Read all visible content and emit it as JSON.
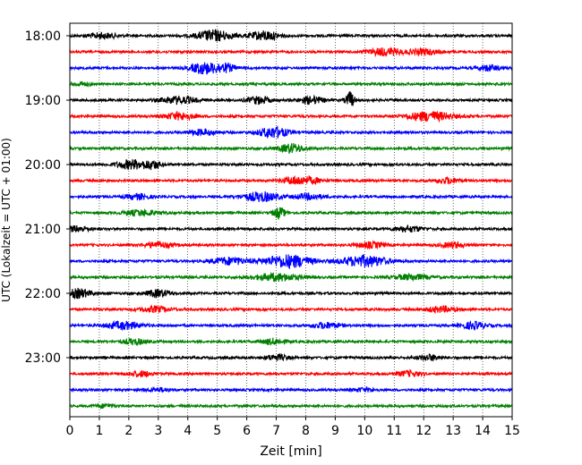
{
  "chart_data": {
    "type": "line",
    "subtype": "helicorder",
    "title": "",
    "xlabel": "Zeit  [min]",
    "ylabel": "UTC (Lokalzeit = UTC + 01:00)",
    "xlim": [
      0,
      15
    ],
    "x_ticks": [
      "0",
      "1",
      "2",
      "3",
      "4",
      "5",
      "6",
      "7",
      "8",
      "9",
      "10",
      "11",
      "12",
      "13",
      "14",
      "15"
    ],
    "y_tick_labels": [
      "18:00",
      "19:00",
      "20:00",
      "21:00",
      "22:00",
      "23:00"
    ],
    "trace_interval_min": 15,
    "grid": "vertical dotted at every minute",
    "legend": "none",
    "trace_color_cycle": [
      "#000000",
      "#ff0000",
      "#0000ff",
      "#008000"
    ],
    "series": [
      {
        "start": "18:00",
        "color": "#000000",
        "bursts": [
          [
            4.9,
            6,
            0.6
          ],
          [
            6.6,
            5,
            0.5
          ],
          [
            1.1,
            3,
            0.5
          ]
        ]
      },
      {
        "start": "18:15",
        "color": "#ff0000",
        "bursts": [
          [
            10.7,
            4,
            0.6
          ],
          [
            12.0,
            3,
            0.5
          ]
        ]
      },
      {
        "start": "18:30",
        "color": "#0000ff",
        "bursts": [
          [
            4.5,
            6,
            0.4
          ],
          [
            5.2,
            5,
            0.4
          ],
          [
            14.2,
            3,
            0.4
          ]
        ]
      },
      {
        "start": "18:45",
        "color": "#008000",
        "bursts": [
          [
            0.4,
            2,
            0.3
          ]
        ]
      },
      {
        "start": "19:00",
        "color": "#000000",
        "bursts": [
          [
            9.5,
            9,
            0.15
          ],
          [
            3.7,
            4,
            0.6
          ],
          [
            6.4,
            4,
            0.4
          ],
          [
            8.2,
            4,
            0.4
          ]
        ]
      },
      {
        "start": "19:15",
        "color": "#ff0000",
        "bursts": [
          [
            12.2,
            5,
            0.8
          ],
          [
            3.7,
            4,
            0.5
          ]
        ]
      },
      {
        "start": "19:30",
        "color": "#0000ff",
        "bursts": [
          [
            6.9,
            6,
            0.5
          ],
          [
            4.5,
            3,
            0.5
          ]
        ]
      },
      {
        "start": "19:45",
        "color": "#008000",
        "bursts": [
          [
            7.5,
            5,
            0.4
          ]
        ]
      },
      {
        "start": "20:00",
        "color": "#000000",
        "bursts": [
          [
            2.1,
            5,
            0.5
          ],
          [
            2.8,
            4,
            0.3
          ]
        ]
      },
      {
        "start": "20:15",
        "color": "#ff0000",
        "bursts": [
          [
            7.6,
            4,
            0.4
          ],
          [
            8.2,
            3,
            0.4
          ],
          [
            12.8,
            3,
            0.4
          ]
        ]
      },
      {
        "start": "20:30",
        "color": "#0000ff",
        "bursts": [
          [
            6.5,
            5,
            0.6
          ],
          [
            8.1,
            3,
            0.5
          ],
          [
            2.3,
            3,
            0.4
          ]
        ]
      },
      {
        "start": "20:45",
        "color": "#008000",
        "bursts": [
          [
            7.1,
            6,
            0.2
          ],
          [
            2.4,
            3,
            0.6
          ]
        ]
      },
      {
        "start": "21:00",
        "color": "#000000",
        "bursts": [
          [
            0.2,
            3,
            0.5
          ],
          [
            11.5,
            3,
            0.5
          ]
        ]
      },
      {
        "start": "21:15",
        "color": "#ff0000",
        "bursts": [
          [
            3.0,
            3,
            0.5
          ],
          [
            10.2,
            3,
            0.5
          ],
          [
            13.0,
            3,
            0.4
          ]
        ]
      },
      {
        "start": "21:30",
        "color": "#0000ff",
        "bursts": [
          [
            7.4,
            7,
            0.8
          ],
          [
            10.0,
            6,
            0.8
          ],
          [
            5.4,
            4,
            0.6
          ]
        ]
      },
      {
        "start": "21:45",
        "color": "#008000",
        "bursts": [
          [
            7.0,
            4,
            0.8
          ],
          [
            11.6,
            3,
            0.6
          ]
        ]
      },
      {
        "start": "22:00",
        "color": "#000000",
        "bursts": [
          [
            0.3,
            5,
            0.4
          ],
          [
            3.0,
            4,
            0.4
          ]
        ]
      },
      {
        "start": "22:15",
        "color": "#ff0000",
        "bursts": [
          [
            2.9,
            3,
            0.5
          ],
          [
            12.6,
            3,
            0.5
          ]
        ]
      },
      {
        "start": "22:30",
        "color": "#0000ff",
        "bursts": [
          [
            1.8,
            4,
            0.6
          ],
          [
            8.7,
            3,
            0.5
          ],
          [
            13.7,
            4,
            0.4
          ]
        ]
      },
      {
        "start": "22:45",
        "color": "#008000",
        "bursts": [
          [
            2.2,
            3,
            0.4
          ],
          [
            6.9,
            3,
            0.4
          ]
        ]
      },
      {
        "start": "23:00",
        "color": "#000000",
        "bursts": [
          [
            7.0,
            3,
            0.4
          ],
          [
            12.2,
            3,
            0.4
          ]
        ]
      },
      {
        "start": "23:15",
        "color": "#ff0000",
        "bursts": [
          [
            2.4,
            3,
            0.4
          ],
          [
            11.5,
            3,
            0.4
          ]
        ]
      },
      {
        "start": "23:30",
        "color": "#0000ff",
        "bursts": [
          [
            3.0,
            2,
            0.4
          ],
          [
            10.0,
            2,
            0.4
          ]
        ]
      },
      {
        "start": "23:45",
        "color": "#008000",
        "bursts": [
          [
            1.2,
            2,
            0.3
          ]
        ]
      }
    ]
  }
}
